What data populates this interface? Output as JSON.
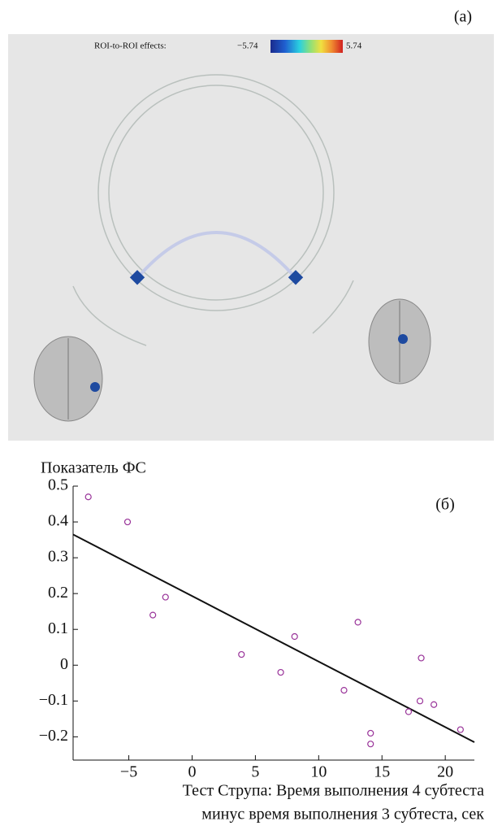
{
  "panel_a": {
    "label": "(a)",
    "colorbar_title": "ROI-to-ROI effects:",
    "colorbar_min": {
      "value": -5.74,
      "label": "−5.74"
    },
    "colorbar_max": 5.74
  },
  "chart_data": {
    "type": "scatter",
    "label": "(б)",
    "ylabel": "Показатель ФС",
    "xlabel": [
      "Тест Струпа: Время выполнения 4 субтеста",
      "минус время выполнения 3 субтеста, сек"
    ],
    "xlim": [
      -9.4,
      22.3
    ],
    "ylim": [
      -0.265,
      0.5
    ],
    "xticks": [
      {
        "value": -5,
        "label": "−5"
      },
      0,
      5,
      10,
      15,
      20
    ],
    "yticks": [
      0.5,
      0.4,
      0.3,
      0.2,
      0.1,
      0,
      {
        "value": -0.1,
        "label": "−0.1"
      },
      {
        "value": -0.2,
        "label": "−0.2"
      }
    ],
    "series": [
      {
        "color": "#993399",
        "x": [
          -8.2,
          -5.1,
          -2.1,
          -3.1,
          3.9,
          7.0,
          8.1,
          13.1,
          12.0,
          14.1,
          14.1,
          18.1,
          18.0,
          17.1,
          19.1,
          21.2
        ],
        "values": [
          0.47,
          0.4,
          0.19,
          0.14,
          0.03,
          -0.02,
          0.08,
          0.12,
          -0.07,
          -0.19,
          -0.22,
          0.02,
          -0.1,
          -0.13,
          -0.11,
          -0.18
        ]
      }
    ],
    "fit_line": {
      "color": "#111111",
      "x": [
        -9.4,
        22.3
      ],
      "values": [
        0.365,
        -0.215
      ]
    }
  }
}
